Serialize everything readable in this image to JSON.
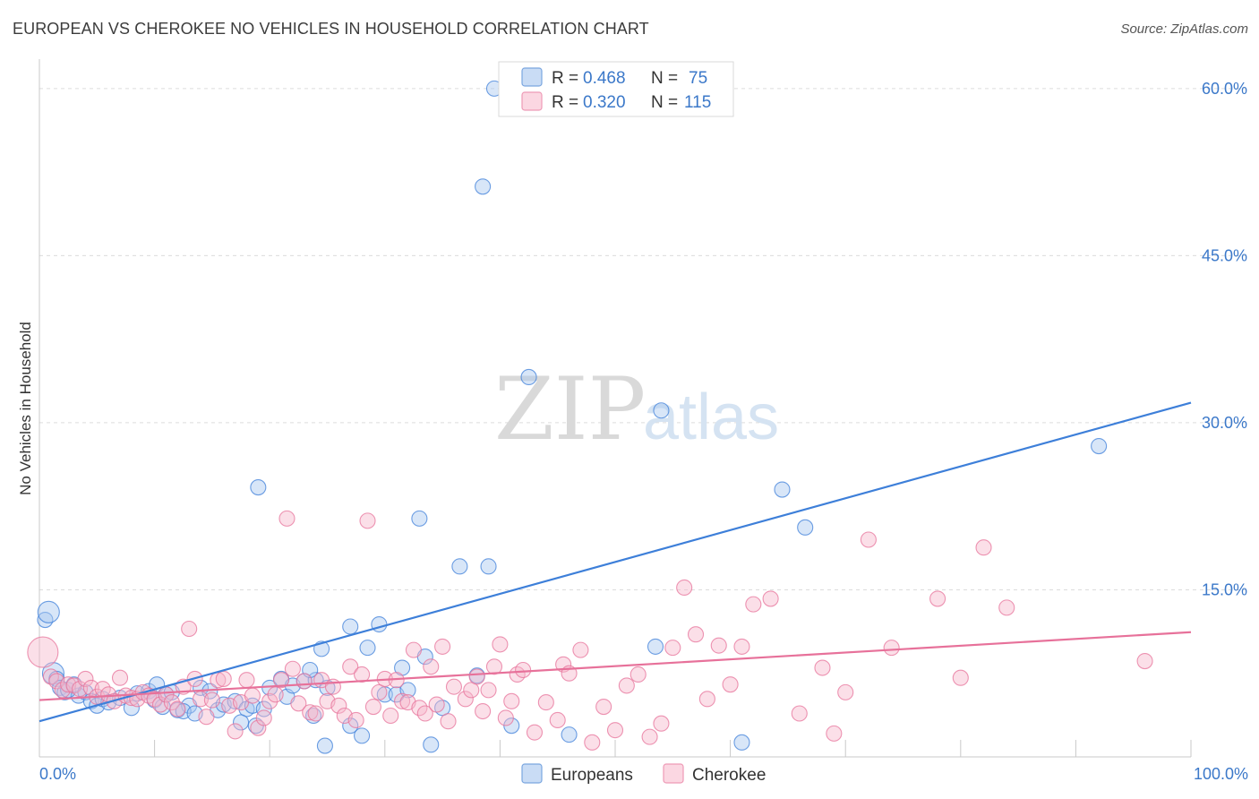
{
  "header": {
    "title": "EUROPEAN VS CHEROKEE NO VEHICLES IN HOUSEHOLD CORRELATION CHART",
    "source": "Source: ZipAtlas.com"
  },
  "watermark": {
    "zip": "ZIP",
    "atlas": "atlas"
  },
  "legend_top": {
    "rows": [
      {
        "r_label": "R =",
        "r_value": "0.468",
        "n_label": "N =",
        "n_value": "75",
        "color": "#a9c8ef"
      },
      {
        "r_label": "R =",
        "r_value": "0.320",
        "n_label": "N =",
        "n_value": "115",
        "color": "#f6b9cc"
      }
    ]
  },
  "chart_data": {
    "type": "scatter",
    "title": "EUROPEAN VS CHEROKEE NO VEHICLES IN HOUSEHOLD CORRELATION CHART",
    "xlabel": "",
    "ylabel": "No Vehicles in Household",
    "xlim": [
      0,
      100
    ],
    "ylim": [
      0,
      62
    ],
    "x_tick_labels": {
      "0": "0.0%",
      "100": "100.0%"
    },
    "y_ticks": [
      15,
      30,
      45,
      60
    ],
    "y_tick_labels": [
      "15.0%",
      "30.0%",
      "45.0%",
      "60.0%"
    ],
    "grid": true,
    "legend_position": "bottom-center",
    "series": [
      {
        "name": "Europeans",
        "color": "#3d7fd9",
        "fill": "#a9c8ef",
        "R": 0.468,
        "N": 75,
        "trend": {
          "x": [
            0,
            100
          ],
          "y": [
            3.2,
            31.8
          ]
        },
        "points": [
          [
            0.5,
            12.3
          ],
          [
            0.8,
            13.0
          ],
          [
            1.2,
            7.5
          ],
          [
            1.5,
            7.0
          ],
          [
            1.8,
            6.2
          ],
          [
            2.2,
            5.8
          ],
          [
            3.4,
            5.5
          ],
          [
            2.5,
            6.0
          ],
          [
            3.0,
            6.5
          ],
          [
            4.0,
            5.8
          ],
          [
            4.5,
            5.0
          ],
          [
            5.0,
            4.6
          ],
          [
            5.5,
            5.2
          ],
          [
            6.0,
            4.9
          ],
          [
            7.0,
            5.3
          ],
          [
            8.0,
            4.4
          ],
          [
            8.5,
            5.7
          ],
          [
            9.5,
            5.9
          ],
          [
            10.0,
            5.1
          ],
          [
            10.2,
            6.5
          ],
          [
            10.7,
            4.5
          ],
          [
            11.0,
            5.6
          ],
          [
            11.5,
            5.8
          ],
          [
            12.0,
            4.2
          ],
          [
            13.0,
            4.6
          ],
          [
            12.5,
            4.1
          ],
          [
            13.5,
            3.9
          ],
          [
            14.0,
            6.2
          ],
          [
            14.8,
            5.9
          ],
          [
            15.5,
            4.2
          ],
          [
            16.0,
            4.7
          ],
          [
            17.0,
            5.0
          ],
          [
            18.0,
            4.3
          ],
          [
            17.5,
            3.1
          ],
          [
            18.5,
            4.6
          ],
          [
            19.5,
            4.3
          ],
          [
            18.8,
            2.8
          ],
          [
            21.0,
            7.0
          ],
          [
            21.5,
            5.4
          ],
          [
            19.0,
            24.2
          ],
          [
            20.0,
            6.2
          ],
          [
            22.0,
            6.4
          ],
          [
            23.0,
            6.8
          ],
          [
            24.0,
            6.9
          ],
          [
            25.0,
            6.2
          ],
          [
            23.5,
            7.8
          ],
          [
            24.5,
            9.7
          ],
          [
            23.8,
            3.7
          ],
          [
            24.8,
            1.0
          ],
          [
            27.0,
            2.8
          ],
          [
            28.0,
            1.9
          ],
          [
            27.0,
            11.7
          ],
          [
            29.5,
            11.9
          ],
          [
            28.5,
            9.8
          ],
          [
            30.0,
            5.6
          ],
          [
            31.0,
            5.6
          ],
          [
            32.0,
            6.0
          ],
          [
            31.5,
            8.0
          ],
          [
            33.5,
            9.0
          ],
          [
            35.0,
            4.4
          ],
          [
            33.0,
            21.4
          ],
          [
            34.0,
            1.1
          ],
          [
            36.5,
            17.1
          ],
          [
            38.0,
            7.3
          ],
          [
            39.0,
            17.1
          ],
          [
            38.5,
            51.2
          ],
          [
            41.0,
            2.8
          ],
          [
            42.5,
            34.1
          ],
          [
            39.5,
            60.0
          ],
          [
            46.0,
            2.0
          ],
          [
            53.5,
            9.9
          ],
          [
            54.0,
            31.1
          ],
          [
            64.5,
            24.0
          ],
          [
            66.5,
            20.6
          ],
          [
            61.0,
            1.3
          ],
          [
            92.0,
            27.9
          ]
        ]
      },
      {
        "name": "Cherokee",
        "color": "#e7719a",
        "fill": "#f6b9cc",
        "R": 0.32,
        "N": 115,
        "trend": {
          "x": [
            0,
            100
          ],
          "y": [
            5.1,
            11.2
          ]
        },
        "points": [
          [
            0.3,
            9.4
          ],
          [
            1.0,
            7.2
          ],
          [
            1.5,
            6.8
          ],
          [
            2.0,
            6.0
          ],
          [
            2.5,
            6.5
          ],
          [
            3.0,
            6.4
          ],
          [
            3.5,
            6.1
          ],
          [
            4.0,
            7.0
          ],
          [
            4.5,
            6.2
          ],
          [
            5.0,
            5.4
          ],
          [
            5.5,
            6.1
          ],
          [
            6.0,
            5.6
          ],
          [
            6.5,
            5.0
          ],
          [
            7.0,
            7.1
          ],
          [
            7.5,
            5.5
          ],
          [
            8.0,
            5.3
          ],
          [
            8.5,
            5.2
          ],
          [
            9.0,
            5.8
          ],
          [
            9.5,
            5.5
          ],
          [
            10.0,
            5.2
          ],
          [
            10.5,
            4.7
          ],
          [
            11.0,
            5.6
          ],
          [
            11.5,
            4.9
          ],
          [
            12.0,
            4.3
          ],
          [
            12.5,
            6.3
          ],
          [
            13.0,
            11.5
          ],
          [
            13.5,
            7.0
          ],
          [
            14.0,
            5.2
          ],
          [
            14.5,
            3.6
          ],
          [
            15.0,
            5.1
          ],
          [
            15.5,
            6.9
          ],
          [
            16.0,
            7.0
          ],
          [
            16.5,
            4.6
          ],
          [
            17.0,
            2.3
          ],
          [
            17.5,
            4.9
          ],
          [
            18.0,
            6.9
          ],
          [
            18.5,
            5.5
          ],
          [
            19.0,
            2.6
          ],
          [
            19.5,
            3.5
          ],
          [
            20.0,
            5.0
          ],
          [
            20.5,
            5.6
          ],
          [
            21.0,
            6.9
          ],
          [
            21.5,
            21.4
          ],
          [
            22.0,
            7.9
          ],
          [
            22.5,
            4.8
          ],
          [
            23.0,
            6.8
          ],
          [
            23.5,
            4.0
          ],
          [
            24.0,
            3.9
          ],
          [
            24.5,
            6.9
          ],
          [
            25.0,
            5.0
          ],
          [
            25.5,
            6.3
          ],
          [
            26.0,
            4.6
          ],
          [
            26.5,
            3.7
          ],
          [
            27.0,
            8.1
          ],
          [
            27.5,
            3.3
          ],
          [
            28.0,
            7.4
          ],
          [
            28.5,
            21.2
          ],
          [
            29.0,
            4.5
          ],
          [
            29.5,
            5.8
          ],
          [
            30.0,
            7.0
          ],
          [
            30.5,
            3.7
          ],
          [
            31.0,
            6.9
          ],
          [
            31.5,
            5.0
          ],
          [
            32.0,
            4.9
          ],
          [
            32.5,
            9.6
          ],
          [
            33.0,
            4.4
          ],
          [
            33.5,
            3.9
          ],
          [
            34.0,
            8.1
          ],
          [
            34.5,
            4.7
          ],
          [
            35.0,
            9.9
          ],
          [
            35.5,
            3.2
          ],
          [
            36.0,
            6.3
          ],
          [
            37.0,
            5.2
          ],
          [
            37.5,
            6.0
          ],
          [
            38.0,
            7.2
          ],
          [
            38.5,
            4.1
          ],
          [
            39.0,
            6.0
          ],
          [
            39.5,
            8.1
          ],
          [
            40.0,
            10.1
          ],
          [
            40.5,
            3.5
          ],
          [
            41.0,
            5.0
          ],
          [
            41.5,
            7.4
          ],
          [
            42.0,
            7.8
          ],
          [
            43.0,
            2.2
          ],
          [
            44.0,
            4.9
          ],
          [
            45.0,
            3.3
          ],
          [
            45.5,
            8.3
          ],
          [
            46.0,
            7.5
          ],
          [
            47.0,
            9.6
          ],
          [
            48.0,
            1.3
          ],
          [
            49.0,
            4.5
          ],
          [
            50.0,
            2.4
          ],
          [
            51.0,
            6.4
          ],
          [
            52.0,
            7.4
          ],
          [
            53.0,
            1.8
          ],
          [
            54.0,
            3.0
          ],
          [
            55.0,
            9.8
          ],
          [
            56.0,
            15.2
          ],
          [
            57.0,
            11.0
          ],
          [
            58.0,
            5.2
          ],
          [
            59.0,
            10.0
          ],
          [
            60.0,
            6.5
          ],
          [
            61.0,
            9.9
          ],
          [
            62.0,
            13.7
          ],
          [
            63.5,
            14.2
          ],
          [
            66.0,
            3.9
          ],
          [
            68.0,
            8.0
          ],
          [
            69.0,
            2.1
          ],
          [
            70.0,
            5.8
          ],
          [
            72.0,
            19.5
          ],
          [
            74.0,
            9.8
          ],
          [
            78.0,
            14.2
          ],
          [
            80.0,
            7.1
          ],
          [
            82.0,
            18.8
          ],
          [
            84.0,
            13.4
          ],
          [
            96.0,
            8.6
          ]
        ]
      }
    ]
  },
  "legend_bottom": {
    "items": [
      {
        "label": "Europeans",
        "color": "#a9c8ef"
      },
      {
        "label": "Cherokee",
        "color": "#f6b9cc"
      }
    ]
  }
}
